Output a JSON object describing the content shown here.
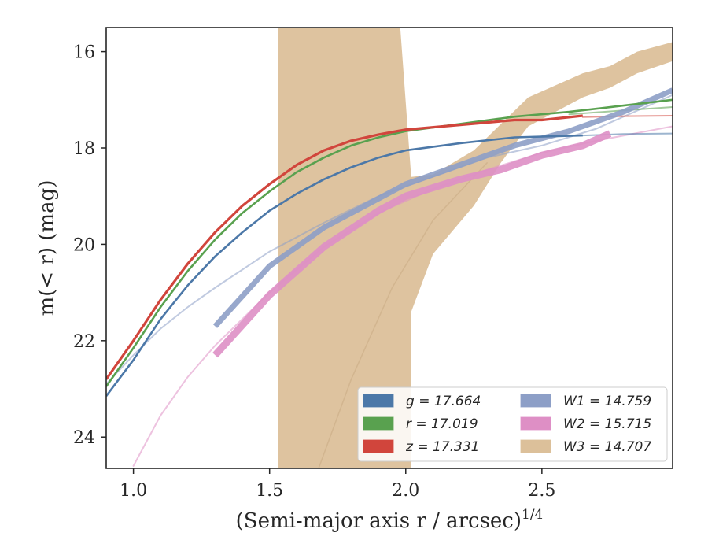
{
  "chart_data": {
    "type": "line",
    "xlabel": "(Semi-major axis r / arcsec)",
    "xlabel_exponent": "1/4",
    "ylabel": "m(< r) (mag)",
    "xlim": [
      0.9,
      2.98
    ],
    "ylim": [
      24.65,
      15.5
    ],
    "y_inverted": true,
    "x_ticks": [
      1.0,
      1.5,
      2.0,
      2.5
    ],
    "x_tick_labels": [
      "1.0",
      "1.5",
      "2.0",
      "2.5"
    ],
    "y_ticks": [
      16,
      18,
      20,
      22,
      24
    ],
    "y_tick_labels": [
      "16",
      "18",
      "20",
      "22",
      "24"
    ],
    "grid": false,
    "legend_placement": "lower-right",
    "series": [
      {
        "name": "g = 17.664",
        "band": "g",
        "mag_label": "17.664",
        "color": "#4c78a8",
        "x": [
          0.9,
          1.0,
          1.1,
          1.2,
          1.3,
          1.4,
          1.5,
          1.6,
          1.7,
          1.8,
          1.9,
          2.0,
          2.2,
          2.4,
          2.65
        ],
        "y": [
          23.15,
          22.4,
          21.55,
          20.85,
          20.25,
          19.75,
          19.3,
          18.95,
          18.65,
          18.4,
          18.2,
          18.05,
          17.9,
          17.78,
          17.74
        ],
        "ext_x": [
          2.65,
          2.8,
          2.98
        ],
        "ext_y": [
          17.74,
          17.71,
          17.7
        ]
      },
      {
        "name": "r = 17.019",
        "band": "r",
        "mag_label": "17.019",
        "color": "#59a14f",
        "x": [
          0.9,
          1.0,
          1.1,
          1.2,
          1.3,
          1.4,
          1.5,
          1.6,
          1.7,
          1.8,
          1.9,
          2.0,
          2.2,
          2.4,
          2.6,
          2.8,
          2.98
        ],
        "y": [
          22.95,
          22.15,
          21.3,
          20.55,
          19.9,
          19.35,
          18.9,
          18.5,
          18.2,
          17.95,
          17.78,
          17.65,
          17.5,
          17.35,
          17.25,
          17.12,
          17.0
        ],
        "ext_x": [
          2.6,
          2.8,
          2.98
        ],
        "ext_y": [
          17.3,
          17.22,
          17.15
        ]
      },
      {
        "name": "z = 17.331",
        "band": "z",
        "mag_label": "17.331",
        "color": "#d1453c",
        "x": [
          0.9,
          1.0,
          1.1,
          1.2,
          1.3,
          1.4,
          1.5,
          1.6,
          1.7,
          1.8,
          1.9,
          2.0,
          2.2,
          2.4,
          2.5,
          2.65
        ],
        "y": [
          22.8,
          22.0,
          21.15,
          20.4,
          19.75,
          19.2,
          18.75,
          18.35,
          18.05,
          17.85,
          17.72,
          17.62,
          17.52,
          17.42,
          17.42,
          17.33
        ],
        "ext_x": [
          2.65,
          2.8,
          2.98
        ],
        "ext_y": [
          17.36,
          17.34,
          17.33
        ]
      },
      {
        "name": "W1 = 14.759",
        "band": "W1",
        "mag_label": "14.759",
        "color": "#8d9fc7",
        "x": [
          1.3,
          1.5,
          1.7,
          1.9,
          2.0,
          2.2,
          2.4,
          2.6,
          2.8,
          2.98
        ],
        "y": [
          21.7,
          20.45,
          19.65,
          19.05,
          18.75,
          18.35,
          17.95,
          17.65,
          17.25,
          16.8
        ],
        "ext_x": [
          0.9,
          1.0,
          1.1,
          1.2,
          1.3,
          1.5,
          1.7,
          1.9,
          2.1,
          2.3,
          2.5,
          2.7,
          2.98
        ],
        "ext_y": [
          22.9,
          22.3,
          21.75,
          21.3,
          20.9,
          20.15,
          19.55,
          19.0,
          18.6,
          18.2,
          17.95,
          17.6,
          16.9
        ]
      },
      {
        "name": "W2 = 15.715",
        "band": "W2",
        "mag_label": "15.715",
        "color": "#de8fc5",
        "x": [
          1.3,
          1.5,
          1.7,
          1.9,
          2.0,
          2.2,
          2.35,
          2.5,
          2.65,
          2.75
        ],
        "y": [
          22.3,
          21.05,
          20.05,
          19.3,
          19.0,
          18.65,
          18.45,
          18.15,
          17.95,
          17.7
        ],
        "ext_x": [
          1.0,
          1.1,
          1.2,
          1.3,
          1.5,
          1.7,
          1.9,
          2.1,
          2.3,
          2.5,
          2.7,
          2.98
        ],
        "ext_y": [
          24.6,
          23.55,
          22.75,
          22.1,
          21.0,
          20.05,
          19.35,
          18.85,
          18.45,
          18.1,
          17.85,
          17.55
        ]
      },
      {
        "name": "W3 = 14.707",
        "band": "W3",
        "mag_label": "14.707",
        "color": "#dcc09a",
        "band_upper_x": [
          1.53,
          1.98,
          2.02,
          2.1,
          2.25,
          2.35,
          2.45,
          2.55,
          2.65,
          2.75,
          2.85,
          2.98
        ],
        "band_upper_y": [
          15.5,
          15.5,
          18.6,
          18.55,
          18.05,
          17.5,
          16.95,
          16.7,
          16.45,
          16.3,
          16.0,
          15.8
        ],
        "band_lower_x": [
          1.53,
          1.53,
          2.02,
          2.02,
          2.1,
          2.25,
          2.35,
          2.45,
          2.55,
          2.65,
          2.75,
          2.85,
          2.98
        ],
        "band_lower_y": [
          15.5,
          24.65,
          24.65,
          21.4,
          20.2,
          19.2,
          18.3,
          17.55,
          17.25,
          16.95,
          16.75,
          16.45,
          16.2
        ],
        "ext_x": [
          1.68,
          1.8,
          1.95,
          2.1,
          2.3
        ],
        "ext_y": [
          24.65,
          22.8,
          20.9,
          19.5,
          18.3
        ]
      }
    ]
  }
}
